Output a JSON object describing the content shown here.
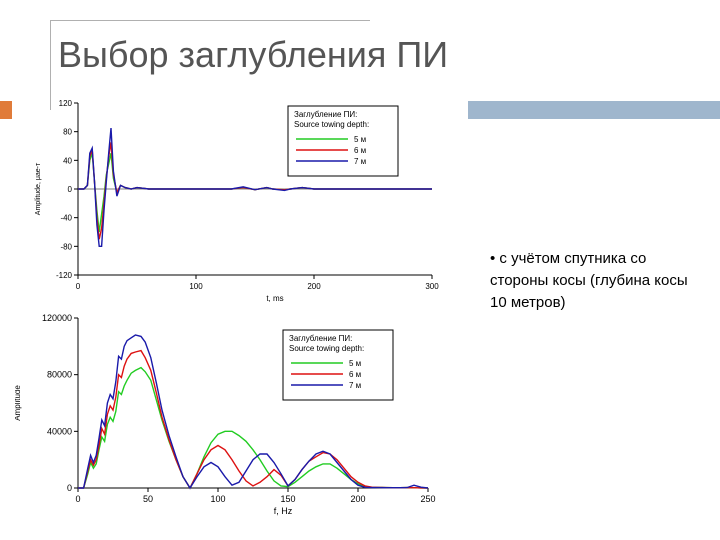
{
  "slide": {
    "title": "Выбор заглубления ПИ",
    "bullet": "• с учётом спутника со стороны косы (глубина косы 10 метров)"
  },
  "legend": {
    "title1": "Заглубление ПИ:",
    "title2": "Source towing depth:",
    "entries": [
      "5 м",
      "6 м",
      "7 м"
    ]
  },
  "colors": {
    "s5": "#22cc22",
    "s6": "#dd1111",
    "s7": "#1a1aaa",
    "accent_orange": "#e07b39",
    "accent_blue": "#9fb6cd"
  },
  "chart_data": [
    {
      "type": "line",
      "xlabel": "t, ms",
      "ylabel": "Amplitude, μaе-т",
      "xlim": [
        0,
        300
      ],
      "ylim": [
        -120,
        120
      ],
      "xticks": [
        0,
        100,
        200,
        300
      ],
      "yticks": [
        120,
        80,
        40,
        0,
        -40,
        -80,
        -120
      ],
      "series": [
        {
          "name": "5 м",
          "x": [
            0,
            5,
            8,
            10,
            12,
            14,
            16,
            18,
            20,
            22,
            24,
            26,
            28,
            30,
            33,
            36,
            40,
            45,
            50,
            60,
            80,
            120,
            130,
            140,
            150,
            160,
            165,
            175,
            180,
            190,
            200,
            220,
            250,
            300
          ],
          "y": [
            0,
            0,
            5,
            40,
            50,
            10,
            -30,
            -60,
            -35,
            -10,
            20,
            35,
            50,
            15,
            -5,
            5,
            2,
            0,
            2,
            0,
            0,
            0,
            0,
            2,
            -1,
            2,
            0,
            -1,
            0,
            2,
            0,
            0,
            0,
            0
          ]
        },
        {
          "name": "6 м",
          "x": [
            0,
            5,
            8,
            10,
            12,
            14,
            16,
            18,
            20,
            22,
            24,
            26,
            28,
            30,
            33,
            36,
            40,
            45,
            50,
            60,
            80,
            120,
            130,
            140,
            150,
            160,
            165,
            175,
            180,
            190,
            200,
            220,
            250,
            300
          ],
          "y": [
            0,
            0,
            5,
            45,
            55,
            10,
            -40,
            -70,
            -55,
            -20,
            15,
            45,
            65,
            20,
            -5,
            5,
            2,
            0,
            2,
            0,
            0,
            0,
            0,
            2,
            -1,
            2,
            0,
            -1,
            0,
            2,
            0,
            0,
            0,
            0
          ]
        },
        {
          "name": "7 м",
          "x": [
            0,
            5,
            8,
            10,
            12,
            14,
            16,
            18,
            20,
            22,
            24,
            26,
            28,
            30,
            33,
            36,
            40,
            45,
            50,
            60,
            80,
            120,
            130,
            140,
            150,
            160,
            165,
            175,
            180,
            190,
            200,
            220,
            250,
            300
          ],
          "y": [
            0,
            0,
            5,
            50,
            57,
            10,
            -50,
            -80,
            -80,
            -30,
            10,
            50,
            85,
            25,
            -10,
            5,
            2,
            0,
            2,
            0,
            0,
            0,
            0,
            3,
            -1,
            2,
            0,
            -2,
            0,
            2,
            0,
            0,
            0,
            0
          ]
        }
      ]
    },
    {
      "type": "line",
      "xlabel": "f, Hz",
      "ylabel": "Amplitude",
      "xlim": [
        0,
        250
      ],
      "ylim": [
        0,
        120000
      ],
      "xticks": [
        0,
        50,
        100,
        150,
        200,
        250
      ],
      "yticks": [
        120000,
        80000,
        40000,
        0
      ],
      "series": [
        {
          "name": "5 м",
          "x": [
            0,
            4,
            7,
            9,
            11,
            13,
            15,
            17,
            19,
            21,
            23,
            25,
            27,
            29,
            31,
            33,
            35,
            38,
            41,
            45,
            48,
            52,
            56,
            60,
            65,
            70,
            75,
            80,
            85,
            90,
            95,
            100,
            105,
            110,
            115,
            120,
            125,
            130,
            135,
            140,
            145,
            150,
            155,
            160,
            165,
            170,
            175,
            180,
            185,
            190,
            195,
            200,
            205,
            210,
            215,
            220,
            225,
            230,
            235,
            240,
            245,
            250
          ],
          "y": [
            0,
            0,
            10000,
            18000,
            14000,
            17000,
            27000,
            36000,
            33000,
            45000,
            50000,
            47000,
            54000,
            68000,
            66000,
            72000,
            76000,
            81000,
            83000,
            85000,
            82000,
            76000,
            62000,
            48000,
            33000,
            20000,
            8000,
            0,
            10000,
            22000,
            32000,
            38000,
            40000,
            40000,
            37000,
            33000,
            27000,
            20000,
            12000,
            5000,
            1500,
            1000,
            4000,
            8000,
            12000,
            15000,
            17000,
            17000,
            14000,
            10000,
            6000,
            3000,
            1000,
            500,
            400,
            300,
            200,
            200,
            300,
            200,
            100,
            0
          ]
        },
        {
          "name": "6 м",
          "x": [
            0,
            4,
            7,
            9,
            11,
            13,
            15,
            17,
            19,
            21,
            23,
            25,
            27,
            29,
            31,
            33,
            35,
            38,
            41,
            45,
            48,
            52,
            56,
            60,
            65,
            70,
            75,
            80,
            85,
            90,
            95,
            100,
            105,
            110,
            115,
            120,
            125,
            130,
            135,
            140,
            145,
            150,
            155,
            160,
            165,
            170,
            175,
            180,
            185,
            190,
            195,
            200,
            205,
            210,
            215,
            220,
            225,
            230,
            235,
            240,
            245,
            250
          ],
          "y": [
            0,
            0,
            12000,
            20000,
            16000,
            20000,
            30000,
            42000,
            38000,
            52000,
            58000,
            55000,
            64000,
            80000,
            78000,
            86000,
            91000,
            95000,
            96000,
            97000,
            92000,
            83000,
            67000,
            50000,
            34000,
            20000,
            8000,
            0,
            10000,
            20000,
            27000,
            30000,
            27000,
            20000,
            12000,
            5000,
            1500,
            4000,
            8000,
            13000,
            9000,
            1500,
            6000,
            13000,
            19000,
            22000,
            25000,
            24000,
            20000,
            14000,
            8000,
            4000,
            1500,
            600,
            400,
            300,
            200,
            200,
            300,
            200,
            100,
            0
          ]
        },
        {
          "name": "7 м",
          "x": [
            0,
            4,
            7,
            9,
            11,
            13,
            15,
            17,
            19,
            21,
            23,
            25,
            27,
            29,
            31,
            33,
            35,
            38,
            41,
            45,
            48,
            52,
            56,
            60,
            65,
            70,
            75,
            80,
            85,
            90,
            95,
            100,
            105,
            110,
            115,
            120,
            125,
            130,
            135,
            140,
            145,
            150,
            155,
            160,
            165,
            170,
            175,
            180,
            185,
            190,
            195,
            200,
            205,
            210,
            215,
            220,
            225,
            230,
            235,
            240,
            245,
            250
          ],
          "y": [
            0,
            0,
            14000,
            23000,
            18000,
            23000,
            35000,
            48000,
            44000,
            60000,
            66000,
            63000,
            75000,
            93000,
            91000,
            100000,
            104000,
            106000,
            108000,
            107000,
            103000,
            92000,
            74000,
            55000,
            37000,
            22000,
            8000,
            0,
            8000,
            15000,
            18000,
            15000,
            8000,
            2000,
            4000,
            12000,
            20000,
            24000,
            24000,
            18000,
            10000,
            1500,
            6000,
            13000,
            19000,
            24000,
            26000,
            24000,
            18000,
            12000,
            6000,
            2000,
            500,
            300,
            300,
            200,
            200,
            200,
            300,
            2000,
            600,
            0
          ]
        }
      ]
    }
  ]
}
